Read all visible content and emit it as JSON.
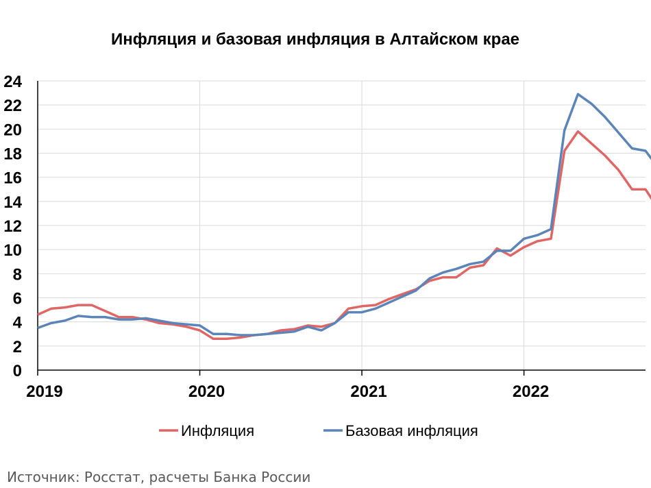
{
  "chart_data": {
    "type": "line",
    "title": "Инфляция и базовая инфляция в Алтайском крае",
    "source": "Источник: Росстат, расчеты Банка России",
    "ylim": [
      0,
      24
    ],
    "yticks": [
      0,
      2,
      4,
      6,
      8,
      10,
      12,
      14,
      16,
      18,
      20,
      22,
      24
    ],
    "xlim": [
      0,
      45
    ],
    "xticks": [
      {
        "pos": 0,
        "label": "2019"
      },
      {
        "pos": 12,
        "label": "2020"
      },
      {
        "pos": 24,
        "label": "2021"
      },
      {
        "pos": 36,
        "label": "2022"
      }
    ],
    "x_description": "monthly observations, Jan 2019 – Oct 2022",
    "grid": true,
    "legend_position": "bottom",
    "series": [
      {
        "name": "Инфляция",
        "color": "#e06666",
        "values": [
          4.6,
          5.1,
          5.2,
          5.4,
          5.4,
          4.9,
          4.4,
          4.4,
          4.2,
          3.9,
          3.8,
          3.6,
          3.3,
          2.6,
          2.6,
          2.7,
          2.9,
          3.0,
          3.3,
          3.4,
          3.7,
          3.6,
          3.9,
          5.1,
          5.3,
          5.4,
          5.9,
          6.3,
          6.7,
          7.4,
          7.7,
          7.7,
          8.5,
          8.7,
          10.1,
          9.5,
          10.2,
          10.7,
          10.9,
          18.2,
          19.8,
          18.8,
          17.8,
          16.6,
          15.0,
          15.0,
          13.3
        ]
      },
      {
        "name": "Базовая инфляция",
        "color": "#5b84b8",
        "values": [
          3.5,
          3.9,
          4.1,
          4.5,
          4.4,
          4.4,
          4.2,
          4.2,
          4.3,
          4.1,
          3.9,
          3.8,
          3.7,
          3.0,
          3.0,
          2.9,
          2.9,
          3.0,
          3.1,
          3.2,
          3.6,
          3.3,
          3.9,
          4.8,
          4.8,
          5.1,
          5.6,
          6.1,
          6.6,
          7.6,
          8.1,
          8.4,
          8.8,
          9.0,
          9.9,
          9.9,
          10.9,
          11.2,
          11.7,
          19.9,
          22.9,
          22.1,
          21.0,
          19.7,
          18.4,
          18.2,
          16.7
        ]
      }
    ]
  }
}
